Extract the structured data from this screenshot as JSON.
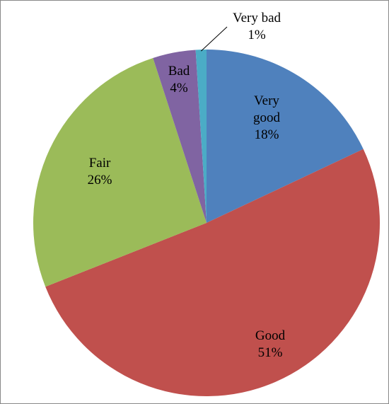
{
  "chart_data": {
    "type": "pie",
    "categories": [
      "Very good",
      "Good",
      "Fair",
      "Bad",
      "Very bad"
    ],
    "values": [
      18,
      51,
      26,
      4,
      1
    ],
    "value_labels": [
      "18%",
      "51%",
      "26%",
      "4%",
      "1%"
    ],
    "colors": [
      "#4f81bd",
      "#c0504d",
      "#9bbb59",
      "#8064a2",
      "#4bacc6"
    ]
  }
}
